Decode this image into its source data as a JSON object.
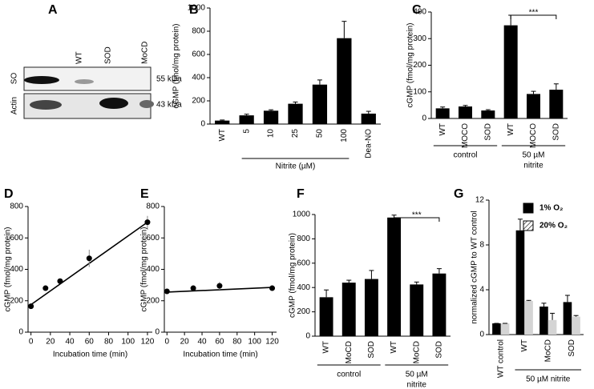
{
  "blot": {
    "panel": "A",
    "columns": [
      "WT",
      "SOD",
      "MoCD"
    ],
    "rows": [
      "SO",
      "Actin"
    ],
    "sizes": [
      "55 kDa",
      "43 kDa"
    ]
  },
  "chart_data": [
    {
      "type": "bar",
      "panel": "B",
      "categories": [
        "WT",
        "5",
        "10",
        "25",
        "50",
        "100",
        "Dea-NO"
      ],
      "values": [
        30,
        75,
        115,
        175,
        340,
        740,
        90
      ],
      "errors": [
        5,
        10,
        8,
        15,
        40,
        145,
        20
      ],
      "color": "#000000",
      "ylabel": "cGMP (fmol/mg protein)",
      "xlabel": "Nitrite (µM)",
      "ylim": [
        0,
        1000
      ],
      "yticks": [
        0,
        200,
        400,
        600,
        800,
        1000
      ]
    },
    {
      "type": "bar",
      "panel": "C",
      "categories": [
        "WT",
        "MOCO",
        "SOD",
        "WT",
        "MOCO",
        "SOD"
      ],
      "values": [
        38,
        45,
        30,
        350,
        92,
        108
      ],
      "errors": [
        5,
        4,
        3,
        38,
        10,
        22
      ],
      "color": "#000000",
      "ylabel": "cGMP (fmol/mg protein)",
      "ylim": [
        0,
        400
      ],
      "yticks": [
        0,
        100,
        200,
        300,
        400
      ],
      "groups": [
        [
          "control"
        ],
        [
          "50 µM",
          "nitrite"
        ]
      ],
      "significance": "***"
    },
    {
      "type": "scatter",
      "panel": "D",
      "x": [
        0,
        15,
        30,
        60,
        120
      ],
      "values": [
        165,
        280,
        325,
        470,
        700
      ],
      "errors": [
        10,
        15,
        10,
        55,
        40
      ],
      "fit": {
        "x": [
          0,
          120
        ],
        "y": [
          175,
          700
        ]
      },
      "color": "#000000",
      "xlabel": "Incubation time (min)",
      "ylabel": "cGMP (fmol/mg protein)",
      "xlim": [
        -3,
        125
      ],
      "xticks": [
        0,
        20,
        40,
        60,
        80,
        100,
        120
      ],
      "ylim": [
        0,
        800
      ],
      "yticks": [
        0,
        200,
        400,
        600,
        800
      ]
    },
    {
      "type": "scatter",
      "panel": "E",
      "x": [
        0,
        30,
        60,
        120
      ],
      "values": [
        260,
        280,
        295,
        280
      ],
      "errors": [
        10,
        15,
        25,
        10
      ],
      "fit": {
        "x": [
          0,
          120
        ],
        "y": [
          255,
          285
        ]
      },
      "color": "#000000",
      "xlabel": "Incubation time (min)",
      "ylabel": "cGMP (fmol/mg protein)",
      "xlim": [
        -3,
        125
      ],
      "xticks": [
        0,
        20,
        40,
        60,
        80,
        100,
        120
      ],
      "ylim": [
        0,
        800
      ],
      "yticks": [
        0,
        200,
        400,
        600,
        800
      ]
    },
    {
      "type": "bar",
      "panel": "F",
      "categories": [
        "WT",
        "MoCD",
        "SOD",
        "WT",
        "MoCD",
        "SOD"
      ],
      "values": [
        320,
        440,
        470,
        975,
        425,
        515
      ],
      "errors": [
        60,
        20,
        70,
        20,
        20,
        40
      ],
      "color": "#000000",
      "ylabel": "cGMP (fmol/mg protein)",
      "ylim": [
        0,
        1000
      ],
      "yticks": [
        0,
        200,
        400,
        600,
        800,
        1000
      ],
      "groups": [
        [
          "control"
        ],
        [
          "50 µM",
          "nitrite"
        ]
      ],
      "significance": "***"
    },
    {
      "type": "bar",
      "panel": "G",
      "categories": [
        "WT control",
        "WT",
        "MoCD",
        "SOD"
      ],
      "series": [
        {
          "name": "1%  O₂",
          "color": "#000000",
          "values": [
            1,
            9.3,
            2.5,
            2.9
          ],
          "errors": [
            0,
            1,
            0.3,
            0.6
          ]
        },
        {
          "name": "20%  O₂",
          "color": "#d4d4d4",
          "hatch": true,
          "values": [
            1,
            3.0,
            1.3,
            1.6
          ],
          "errors": [
            0,
            0.05,
            0.6,
            0.1
          ]
        }
      ],
      "ylabel": "normalized cGMP to WT control",
      "ylim": [
        0,
        12
      ],
      "yticks": [
        0,
        4,
        8,
        12
      ],
      "groups": [
        [
          "50 µM nitrite"
        ]
      ]
    }
  ]
}
